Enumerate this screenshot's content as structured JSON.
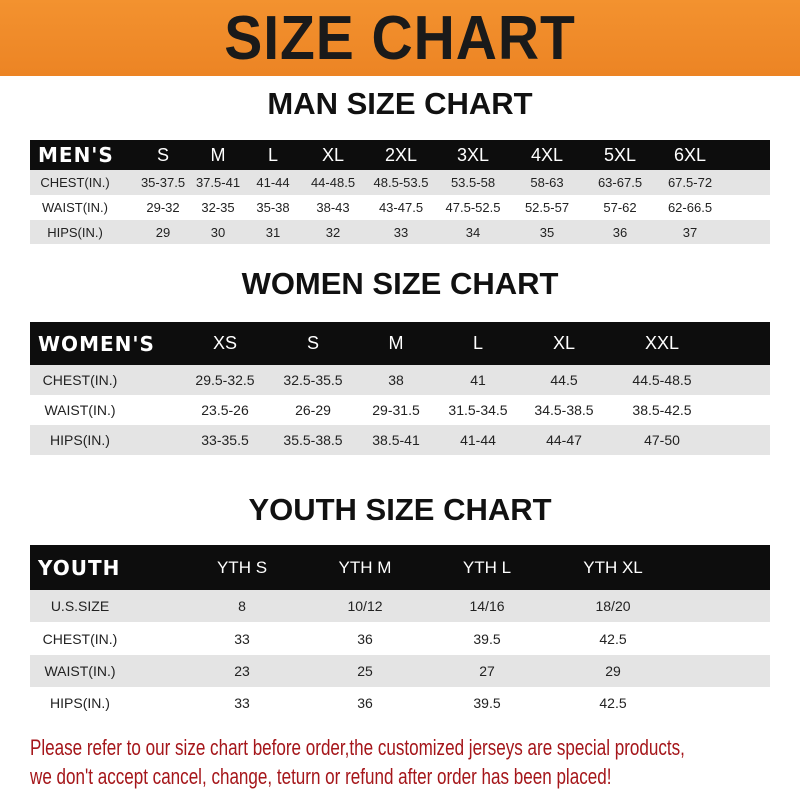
{
  "banner_title": "SIZE CHART",
  "men": {
    "title": "MAN SIZE CHART",
    "header": [
      "MEN'S",
      "S",
      "M",
      "L",
      "XL",
      "2XL",
      "3XL",
      "4XL",
      "5XL",
      "6XL"
    ],
    "rows": [
      [
        "CHEST(IN.)",
        "35-37.5",
        "37.5-41",
        "41-44",
        "44-48.5",
        "48.5-53.5",
        "53.5-58",
        "58-63",
        "63-67.5",
        "67.5-72"
      ],
      [
        "WAIST(IN.)",
        "29-32",
        "32-35",
        "35-38",
        "38-43",
        "43-47.5",
        "47.5-52.5",
        "52.5-57",
        "57-62",
        "62-66.5"
      ],
      [
        "HIPS(IN.)",
        "29",
        "30",
        "31",
        "32",
        "33",
        "34",
        "35",
        "36",
        "37"
      ]
    ]
  },
  "women": {
    "title": "WOMEN SIZE CHART",
    "header": [
      "WOMEN'S",
      "XS",
      "S",
      "M",
      "L",
      "XL",
      "XXL"
    ],
    "rows": [
      [
        "CHEST(IN.)",
        "29.5-32.5",
        "32.5-35.5",
        "38",
        "41",
        "44.5",
        "44.5-48.5"
      ],
      [
        "WAIST(IN.)",
        "23.5-26",
        "26-29",
        "29-31.5",
        "31.5-34.5",
        "34.5-38.5",
        "38.5-42.5"
      ],
      [
        "HIPS(IN.)",
        "33-35.5",
        "35.5-38.5",
        "38.5-41",
        "41-44",
        "44-47",
        "47-50"
      ]
    ]
  },
  "youth": {
    "title": "YOUTH SIZE CHART",
    "header": [
      "YOUTH",
      "YTH S",
      "YTH M",
      "YTH L",
      "YTH XL"
    ],
    "rows": [
      [
        "U.S.SIZE",
        "8",
        "10/12",
        "14/16",
        "18/20"
      ],
      [
        "CHEST(IN.)",
        "33",
        "36",
        "39.5",
        "42.5"
      ],
      [
        "WAIST(IN.)",
        "23",
        "25",
        "27",
        "29"
      ],
      [
        "HIPS(IN.)",
        "33",
        "36",
        "39.5",
        "42.5"
      ]
    ]
  },
  "notice": {
    "line1": "Please refer to our size chart before order,the customized jerseys are special products,",
    "line2": "we don't accept cancel, change, teturn or refund after order has been placed!"
  },
  "colors": {
    "banner": "#ef8a2a",
    "header_row": "#0d0d0d",
    "notice": "#a5161a"
  }
}
